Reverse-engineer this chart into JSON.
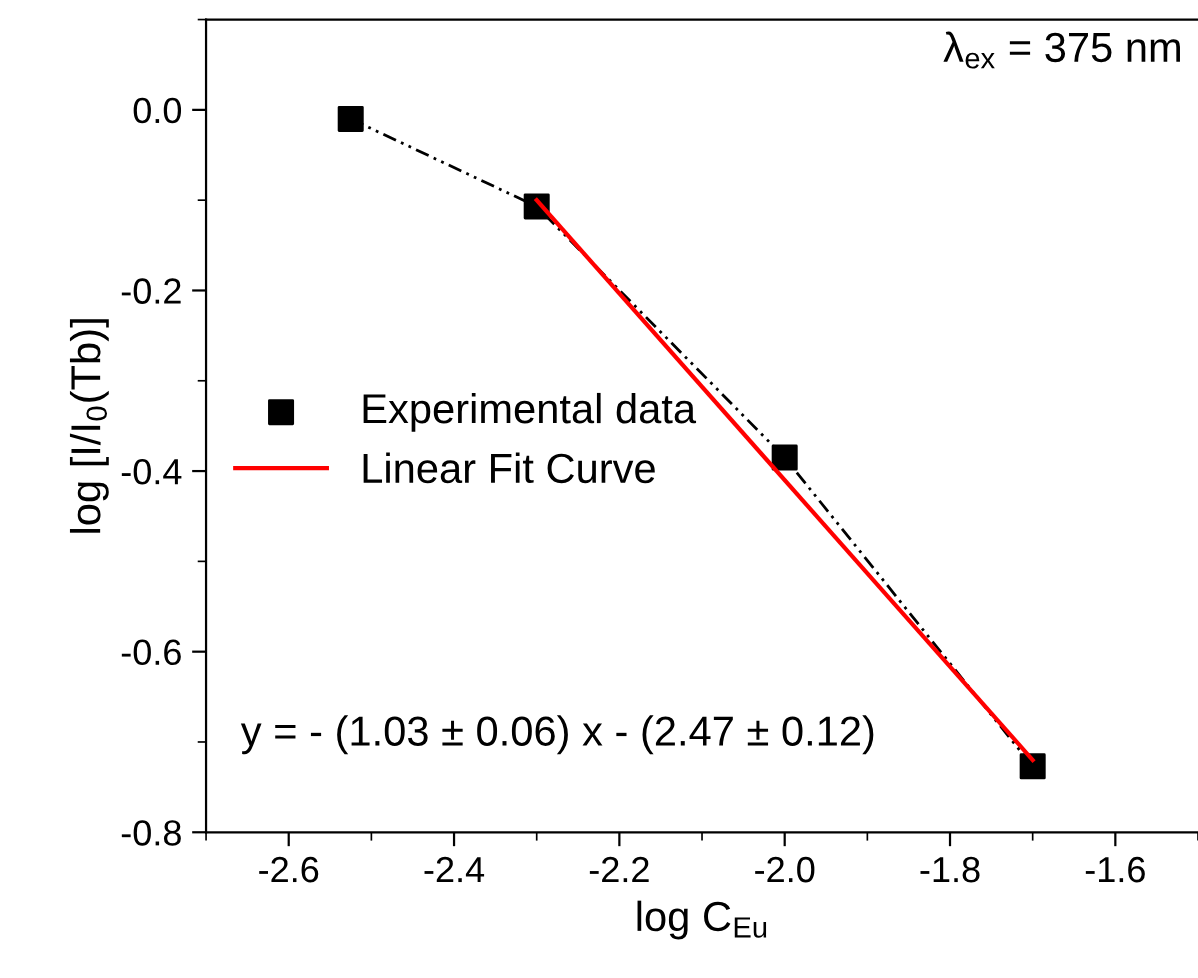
{
  "chart_data": {
    "type": "scatter",
    "xlabel": "log C$_{Eu}$",
    "ylabel": "log [I/I$_{0}$(Tb)]",
    "xlim": [
      -2.7,
      -1.5
    ],
    "ylim": [
      -0.8,
      0.1
    ],
    "xticks": [
      {
        "value": -2.6,
        "label": "-2.6"
      },
      {
        "value": -2.4,
        "label": "-2.4"
      },
      {
        "value": -2.2,
        "label": "-2.2"
      },
      {
        "value": -2.0,
        "label": "-2.0"
      },
      {
        "value": -1.8,
        "label": "-1.8"
      },
      {
        "value": -1.6,
        "label": "-1.6"
      }
    ],
    "yticks": [
      {
        "value": 0,
        "label": "0.0"
      },
      {
        "value": -0.2,
        "label": "-0.2"
      },
      {
        "value": -0.4,
        "label": "-0.4"
      },
      {
        "value": -0.6,
        "label": "-0.6"
      },
      {
        "value": -0.8,
        "label": "-0.8"
      }
    ],
    "series": [
      {
        "type": "line",
        "color": "#000000",
        "line_style": "dash-dot-dot",
        "marker": "none",
        "x": [
          -2.525,
          -2.3,
          -2.0,
          -1.7
        ],
        "values": [
          -0.01,
          -0.107,
          -0.385,
          -0.727
        ]
      },
      {
        "name": "Experimental data",
        "color": "#000000",
        "marker": "square",
        "x": [
          -2.525,
          -2.3,
          -2.0,
          -1.7
        ],
        "values": [
          -0.01,
          -0.107,
          -0.385,
          -0.727
        ]
      },
      {
        "type": "line",
        "name": "Linear Fit Curve",
        "color": "#ff0000",
        "line_style": "solid",
        "marker": "none",
        "x": [
          -2.3,
          -1.7
        ],
        "values": [
          -0.1,
          -0.72
        ]
      }
    ],
    "annotations": [
      "λ$_{ex}$ = 375 nm",
      "y = - (1.03 ± 0.06) x - (2.47 ± 0.12)"
    ],
    "legend": "center left",
    "grid": false
  }
}
